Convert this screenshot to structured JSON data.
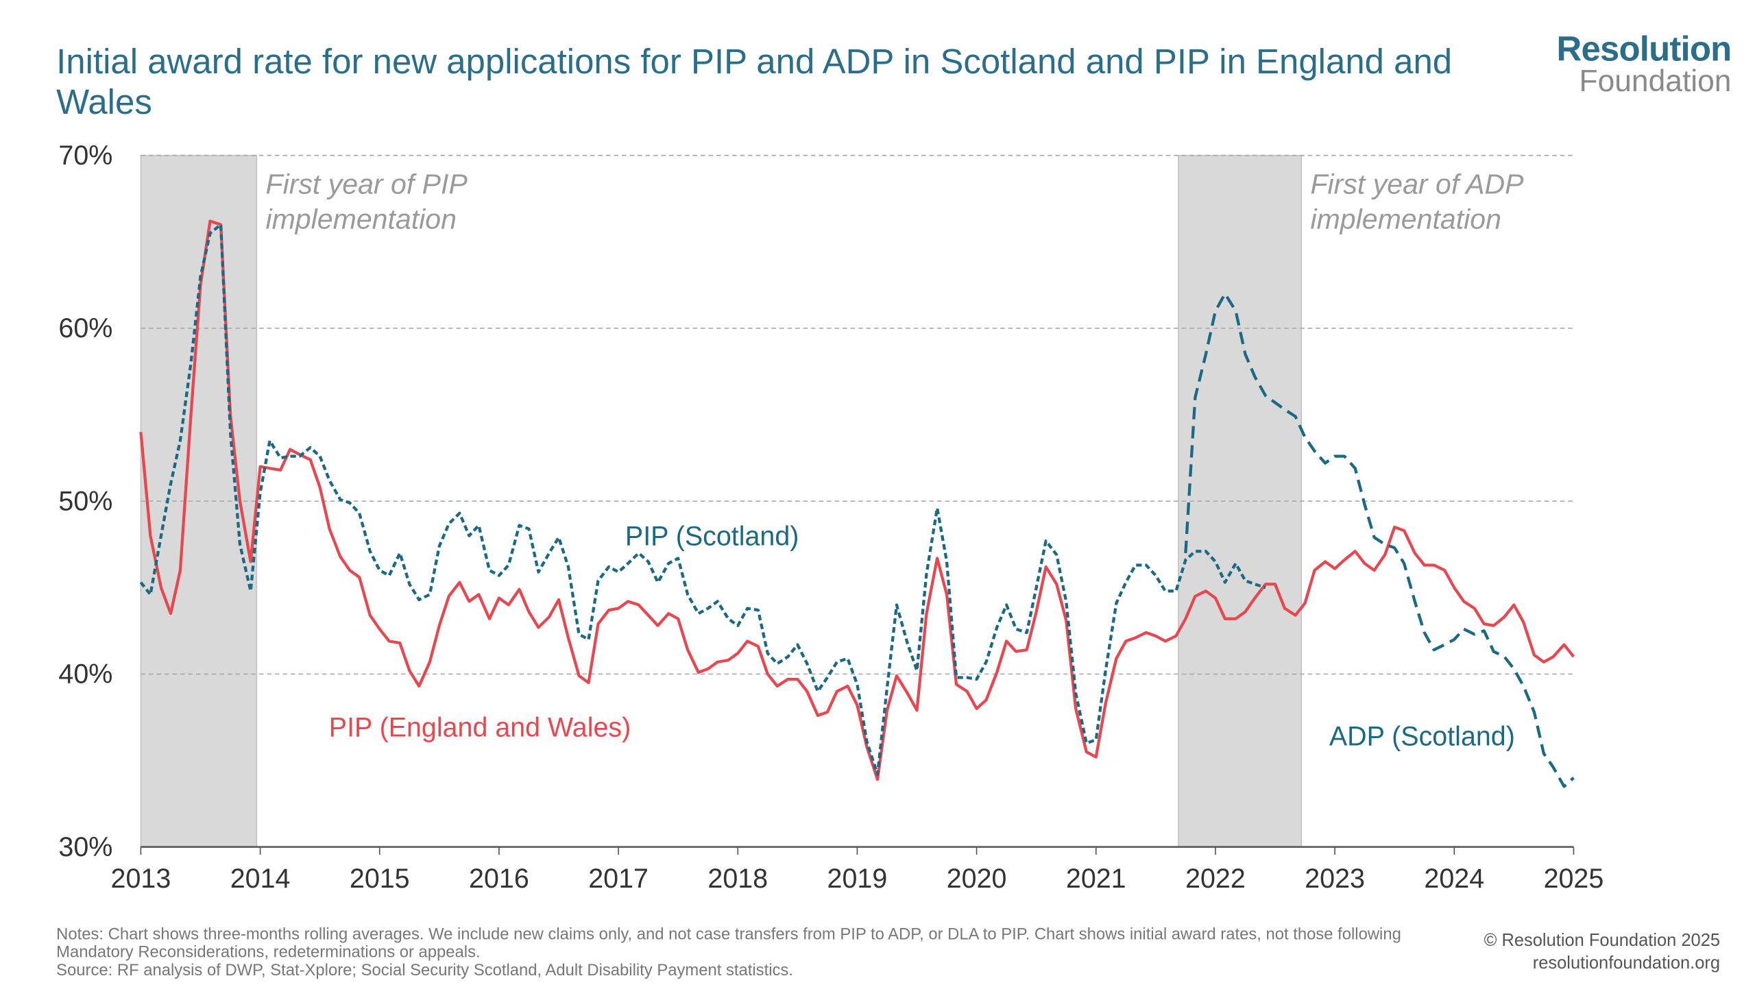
{
  "title": "Initial award rate for new applications for PIP and ADP in Scotland and PIP in England and Wales",
  "logo": {
    "line1": "Resolution",
    "line2": "Foundation"
  },
  "notes": "Notes: Chart shows three-months rolling averages. We include new claims only, and not case transfers from PIP to ADP, or DLA to PIP. Chart shows initial award rates, not those following Mandatory Reconsiderations, redeterminations or appeals.",
  "source": "Source: RF analysis of DWP, Stat-Xplore; Social Security Scotland, Adult Disability Payment statistics.",
  "copyright": "© Resolution Foundation 2025",
  "url": "resolutionfoundation.org",
  "chart_data": {
    "type": "line",
    "xlim": [
      2013,
      2025
    ],
    "xticks": [
      2013,
      2014,
      2015,
      2016,
      2017,
      2018,
      2019,
      2020,
      2021,
      2022,
      2023,
      2024,
      2025
    ],
    "ylim": [
      30,
      70
    ],
    "yticks": [
      {
        "value": 30,
        "label": "30%"
      },
      {
        "value": 40,
        "label": "40%"
      },
      {
        "value": 50,
        "label": "50%"
      },
      {
        "value": 60,
        "label": "60%"
      },
      {
        "value": 70,
        "label": "70%"
      }
    ],
    "grid": true,
    "shaded_periods": [
      {
        "start": 2013,
        "end": 2013.97,
        "label": [
          "First year of PIP",
          "implementation"
        ]
      },
      {
        "start": 2021.69,
        "end": 2022.72,
        "label": [
          "First year of ADP",
          "implementation"
        ]
      }
    ],
    "x": [
      2013,
      2013.08,
      2013.17,
      2013.25,
      2013.33,
      2013.42,
      2013.5,
      2013.58,
      2013.67,
      2013.75,
      2013.83,
      2013.92,
      2014,
      2014.08,
      2014.17,
      2014.25,
      2014.33,
      2014.42,
      2014.5,
      2014.58,
      2014.67,
      2014.75,
      2014.83,
      2014.92,
      2015,
      2015.08,
      2015.17,
      2015.25,
      2015.33,
      2015.42,
      2015.5,
      2015.58,
      2015.67,
      2015.75,
      2015.83,
      2015.92,
      2016,
      2016.08,
      2016.17,
      2016.25,
      2016.33,
      2016.42,
      2016.5,
      2016.58,
      2016.67,
      2016.75,
      2016.83,
      2016.92,
      2017,
      2017.08,
      2017.17,
      2017.25,
      2017.33,
      2017.42,
      2017.5,
      2017.58,
      2017.67,
      2017.75,
      2017.83,
      2017.92,
      2018,
      2018.08,
      2018.17,
      2018.25,
      2018.33,
      2018.42,
      2018.5,
      2018.58,
      2018.67,
      2018.75,
      2018.83,
      2018.92,
      2019,
      2019.08,
      2019.17,
      2019.25,
      2019.33,
      2019.42,
      2019.5,
      2019.58,
      2019.67,
      2019.75,
      2019.83,
      2019.92,
      2020,
      2020.08,
      2020.17,
      2020.25,
      2020.33,
      2020.42,
      2020.5,
      2020.58,
      2020.67,
      2020.75,
      2020.83,
      2020.92,
      2021,
      2021.08,
      2021.17,
      2021.25,
      2021.33,
      2021.42,
      2021.5,
      2021.58,
      2021.67,
      2021.75,
      2021.83,
      2021.92,
      2022,
      2022.08,
      2022.17,
      2022.25,
      2022.33,
      2022.42,
      2022.5,
      2022.58,
      2022.67,
      2022.75,
      2022.83,
      2022.92,
      2023,
      2023.08,
      2023.17,
      2023.25,
      2023.33,
      2023.42,
      2023.5,
      2023.58,
      2023.67,
      2023.75,
      2023.83,
      2023.92,
      2024,
      2024.08,
      2024.17,
      2024.25,
      2024.33,
      2024.42,
      2024.5,
      2024.58,
      2024.67,
      2024.75,
      2024.83,
      2024.92,
      2025
    ],
    "series": [
      {
        "name": "PIP (England and Wales)",
        "color": "#e8474f",
        "dashed": false,
        "values": [
          54,
          48,
          45,
          43.5,
          46,
          55,
          62.5,
          66.2,
          66,
          55,
          50,
          46.5,
          52,
          51.9,
          51.8,
          53,
          52.7,
          52.4,
          50.8,
          48.4,
          46.8,
          46,
          45.6,
          43.4,
          42.6,
          41.9,
          41.8,
          40.2,
          39.3,
          40.7,
          42.8,
          44.5,
          45.3,
          44.2,
          44.6,
          43.2,
          44.4,
          44,
          44.9,
          43.6,
          42.7,
          43.3,
          44.3,
          42.1,
          39.9,
          39.5,
          42.9,
          43.7,
          43.8,
          44.2,
          44,
          43.4,
          42.8,
          43.5,
          43.2,
          41.4,
          40.1,
          40.3,
          40.7,
          40.8,
          41.2,
          41.9,
          41.6,
          40,
          39.3,
          39.7,
          39.7,
          39,
          37.6,
          37.8,
          39,
          39.3,
          38.2,
          35.8,
          33.9,
          37.9,
          39.9,
          38.9,
          37.9,
          43.5,
          46.7,
          44.6,
          39.4,
          39,
          38,
          38.5,
          40.1,
          41.9,
          41.3,
          41.4,
          43.6,
          46.2,
          45.2,
          43.1,
          38,
          35.5,
          35.2,
          38.3,
          40.9,
          41.9,
          42.1,
          42.4,
          42.2,
          41.9,
          42.2,
          43.2,
          44.5,
          44.8,
          44.4,
          43.2,
          43.2,
          43.6,
          44.4,
          45.2,
          45.2,
          43.8,
          43.4,
          44.1,
          46,
          46.5,
          46.1,
          46.6,
          47.1,
          46.4,
          46,
          46.9,
          48.5,
          48.3,
          47,
          46.3,
          46.3,
          46,
          45,
          44.2,
          43.8,
          42.9,
          42.8,
          43.3,
          44,
          43,
          41.1,
          40.7,
          41,
          41.7,
          41
        ]
      },
      {
        "name": "PIP (Scotland)",
        "color": "#1a6985",
        "dashed": true,
        "values": [
          45.3,
          44.6,
          48,
          51,
          53.5,
          58,
          63,
          65.5,
          66,
          54,
          47.5,
          44.8,
          50.5,
          53.5,
          52.5,
          52.6,
          52.6,
          53.1,
          52.6,
          51.2,
          50.1,
          49.9,
          49.3,
          47.1,
          46,
          45.7,
          47,
          45.2,
          44.3,
          44.6,
          47.4,
          48.7,
          49.3,
          48,
          48.6,
          46,
          45.7,
          46.3,
          48.6,
          48.4,
          45.9,
          47,
          47.9,
          46.2,
          42.3,
          42,
          45.4,
          46.2,
          45.9,
          46.4,
          47,
          46.5,
          45.3,
          46.4,
          46.7,
          44.6,
          43.5,
          43.8,
          44.2,
          43.2,
          42.8,
          43.8,
          43.7,
          41.2,
          40.6,
          41,
          41.7,
          40.6,
          39,
          39.8,
          40.7,
          40.9,
          39.4,
          36.1,
          34.2,
          39.2,
          44,
          41.8,
          40.2,
          45.8,
          49.6,
          46.5,
          39.8,
          39.8,
          39.7,
          40.7,
          42.7,
          44,
          42.6,
          42.4,
          45,
          47.7,
          46.9,
          44.2,
          38.9,
          36,
          36.2,
          40.2,
          44.1,
          45.3,
          46.3,
          46.3,
          45.7,
          44.8,
          44.8,
          46.6,
          47.1,
          47.1,
          46.5,
          45.3,
          46.4,
          45.4,
          45.2,
          45,
          null,
          null,
          null,
          null,
          null,
          null,
          null,
          null,
          null,
          null,
          null,
          null,
          null,
          null,
          null,
          null,
          null,
          null,
          null,
          null,
          null,
          null,
          null,
          null,
          null,
          null,
          null,
          null,
          null,
          null,
          null
        ]
      },
      {
        "name": "ADP (Scotland)",
        "color": "#1a6985",
        "dashed": true,
        "values": [
          null,
          null,
          null,
          null,
          null,
          null,
          null,
          null,
          null,
          null,
          null,
          null,
          null,
          null,
          null,
          null,
          null,
          null,
          null,
          null,
          null,
          null,
          null,
          null,
          null,
          null,
          null,
          null,
          null,
          null,
          null,
          null,
          null,
          null,
          null,
          null,
          null,
          null,
          null,
          null,
          null,
          null,
          null,
          null,
          null,
          null,
          null,
          null,
          null,
          null,
          null,
          null,
          null,
          null,
          null,
          null,
          null,
          null,
          null,
          null,
          null,
          null,
          null,
          null,
          null,
          null,
          null,
          null,
          null,
          null,
          null,
          null,
          null,
          null,
          null,
          null,
          null,
          null,
          null,
          null,
          null,
          null,
          null,
          null,
          null,
          null,
          null,
          null,
          null,
          null,
          null,
          null,
          null,
          null,
          null,
          null,
          null,
          null,
          null,
          null,
          null,
          null,
          null,
          null,
          null,
          47,
          56,
          58.5,
          61,
          62,
          61,
          58.5,
          57.2,
          56.1,
          55.7,
          55.3,
          54.9,
          53.7,
          52.9,
          52.2,
          52.6,
          52.6,
          51.9,
          49.8,
          47.9,
          47.5,
          47.3,
          46.4,
          44.2,
          42.4,
          41.4,
          41.7,
          42,
          42.6,
          42.3,
          42.5,
          41.3,
          41,
          40.3,
          39.3,
          37.8,
          35.4,
          34.6,
          33.5,
          34
        ]
      }
    ]
  }
}
